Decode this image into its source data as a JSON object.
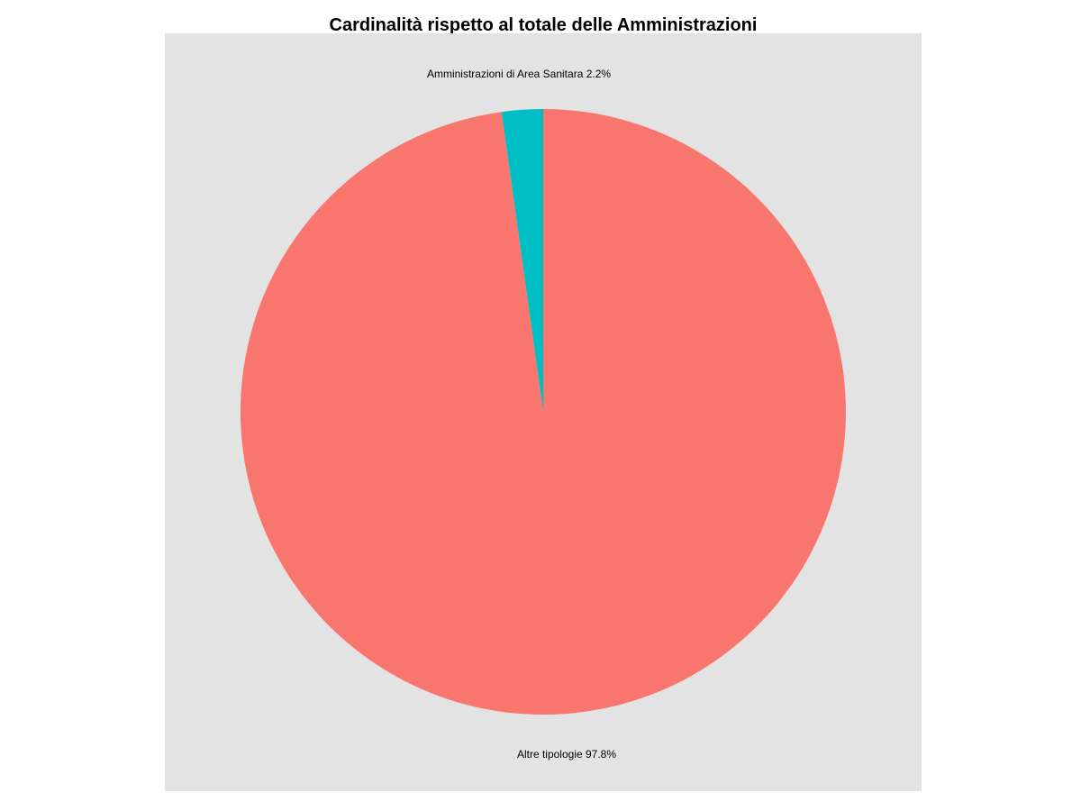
{
  "chart_data": {
    "type": "pie",
    "title": "Cardinalità rispetto al totale delle Amministrazioni",
    "start": "12 o'clock",
    "direction": "counterclockwise",
    "panel_background": "#e3e3e3",
    "slices": [
      {
        "name": "Amministrazioni di Area Sanitara",
        "value": 2.2,
        "color": "#00bfc4",
        "label": "Amministrazioni di Area Sanitara 2.2%"
      },
      {
        "name": "Altre tipologie",
        "value": 97.8,
        "color": "#f8766d",
        "label": "Altre tipologie 97.8%"
      }
    ]
  }
}
